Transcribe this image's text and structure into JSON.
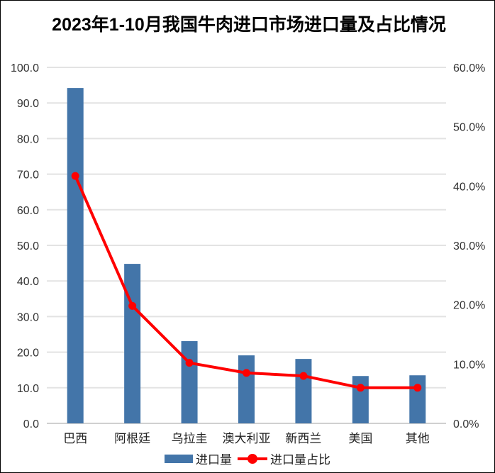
{
  "chart_data": {
    "type": "bar+line",
    "title": "2023年1-10月我国牛肉进口市场进口量及占比情况",
    "categories": [
      "巴西",
      "阿根廷",
      "乌拉圭",
      "澳大利亚",
      "新西兰",
      "美国",
      "其他"
    ],
    "series": [
      {
        "name": "进口量",
        "type": "bar",
        "axis": "left",
        "color": "#4375A9",
        "values": [
          94.2,
          44.8,
          23.1,
          19.1,
          18.1,
          13.3,
          13.5
        ]
      },
      {
        "name": "进口量占比",
        "type": "line",
        "axis": "right",
        "color": "#FF0000",
        "values": [
          41.7,
          19.8,
          10.2,
          8.5,
          8.0,
          6.0,
          6.0
        ]
      }
    ],
    "left_axis": {
      "ylim": [
        0,
        100
      ],
      "ticks": [
        "0.0",
        "10.0",
        "20.0",
        "30.0",
        "40.0",
        "50.0",
        "60.0",
        "70.0",
        "80.0",
        "90.0",
        "100.0"
      ]
    },
    "right_axis": {
      "ylim": [
        0,
        60
      ],
      "unit": "%",
      "ticks": [
        "0.0%",
        "10.0%",
        "20.0%",
        "30.0%",
        "40.0%",
        "50.0%",
        "60.0%"
      ]
    },
    "grid": true,
    "legend": "bottom"
  }
}
